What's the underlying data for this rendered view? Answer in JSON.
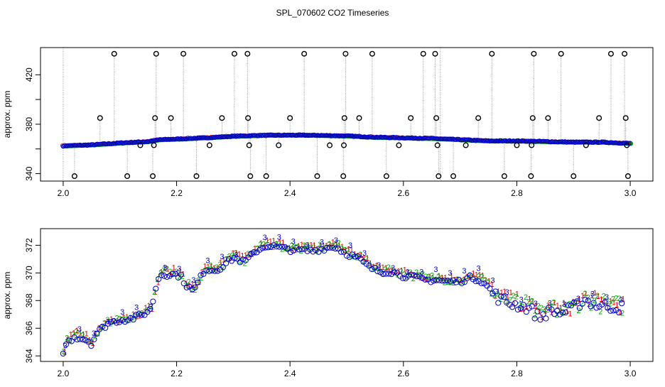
{
  "title": "SPL_070602  CO2 Timeseries",
  "chart_data": [
    {
      "type": "scatter",
      "name": "top",
      "ylabel": "approx. ppm",
      "xlim": [
        1.96,
        3.04
      ],
      "ylim": [
        334,
        442
      ],
      "xticks": [
        2.0,
        2.2,
        2.4,
        2.6,
        2.8,
        3.0
      ],
      "xtick_labels": [
        "2.0",
        "2.2",
        "2.4",
        "2.6",
        "2.8",
        "3.0"
      ],
      "yticks": [
        340,
        360,
        380,
        400,
        420
      ],
      "ytick_labels": [
        "340",
        "",
        "380",
        "",
        "420"
      ],
      "vlines_x": [
        2.0,
        2.665
      ],
      "baseline": [
        [
          2.0,
          362.5
        ],
        [
          2.05,
          363.3
        ],
        [
          2.1,
          364.8
        ],
        [
          2.15,
          366.0
        ],
        [
          2.17,
          367.5
        ],
        [
          2.2,
          368.0
        ],
        [
          2.25,
          369.0
        ],
        [
          2.3,
          370.3
        ],
        [
          2.35,
          371.0
        ],
        [
          2.4,
          371.2
        ],
        [
          2.45,
          371.0
        ],
        [
          2.5,
          370.5
        ],
        [
          2.55,
          369.5
        ],
        [
          2.6,
          369.0
        ],
        [
          2.65,
          368.5
        ],
        [
          2.7,
          367.5
        ],
        [
          2.75,
          366.5
        ],
        [
          2.8,
          366.5
        ],
        [
          2.85,
          366.0
        ],
        [
          2.9,
          365.5
        ],
        [
          2.95,
          365.5
        ],
        [
          3.0,
          364.5
        ]
      ],
      "spikes": [
        {
          "x": 2.02,
          "y": 338
        },
        {
          "x": 2.065,
          "y": 385
        },
        {
          "x": 2.09,
          "y": 437
        },
        {
          "x": 2.113,
          "y": 338
        },
        {
          "x": 2.136,
          "y": 363
        },
        {
          "x": 2.158,
          "y": 338
        },
        {
          "x": 2.16,
          "y": 363
        },
        {
          "x": 2.162,
          "y": 385
        },
        {
          "x": 2.164,
          "y": 437
        },
        {
          "x": 2.19,
          "y": 385
        },
        {
          "x": 2.212,
          "y": 437
        },
        {
          "x": 2.235,
          "y": 338
        },
        {
          "x": 2.258,
          "y": 363
        },
        {
          "x": 2.28,
          "y": 385
        },
        {
          "x": 2.302,
          "y": 437
        },
        {
          "x": 2.325,
          "y": 437
        },
        {
          "x": 2.326,
          "y": 385
        },
        {
          "x": 2.328,
          "y": 363
        },
        {
          "x": 2.33,
          "y": 338
        },
        {
          "x": 2.358,
          "y": 338
        },
        {
          "x": 2.38,
          "y": 363
        },
        {
          "x": 2.4,
          "y": 385
        },
        {
          "x": 2.425,
          "y": 437
        },
        {
          "x": 2.448,
          "y": 338
        },
        {
          "x": 2.47,
          "y": 363
        },
        {
          "x": 2.494,
          "y": 338
        },
        {
          "x": 2.495,
          "y": 363
        },
        {
          "x": 2.496,
          "y": 385
        },
        {
          "x": 2.498,
          "y": 437
        },
        {
          "x": 2.522,
          "y": 385
        },
        {
          "x": 2.545,
          "y": 437
        },
        {
          "x": 2.57,
          "y": 338
        },
        {
          "x": 2.592,
          "y": 363
        },
        {
          "x": 2.613,
          "y": 385
        },
        {
          "x": 2.635,
          "y": 437
        },
        {
          "x": 2.656,
          "y": 437
        },
        {
          "x": 2.658,
          "y": 385
        },
        {
          "x": 2.66,
          "y": 363
        },
        {
          "x": 2.662,
          "y": 338
        },
        {
          "x": 2.688,
          "y": 338
        },
        {
          "x": 2.71,
          "y": 363
        },
        {
          "x": 2.732,
          "y": 385
        },
        {
          "x": 2.756,
          "y": 437
        },
        {
          "x": 2.778,
          "y": 338
        },
        {
          "x": 2.8,
          "y": 363
        },
        {
          "x": 2.825,
          "y": 338
        },
        {
          "x": 2.826,
          "y": 363
        },
        {
          "x": 2.828,
          "y": 385
        },
        {
          "x": 2.83,
          "y": 437
        },
        {
          "x": 2.855,
          "y": 385
        },
        {
          "x": 2.878,
          "y": 437
        },
        {
          "x": 2.9,
          "y": 338
        },
        {
          "x": 2.922,
          "y": 363
        },
        {
          "x": 2.945,
          "y": 385
        },
        {
          "x": 2.966,
          "y": 437
        },
        {
          "x": 2.99,
          "y": 437
        },
        {
          "x": 2.992,
          "y": 385
        },
        {
          "x": 2.994,
          "y": 363
        },
        {
          "x": 2.996,
          "y": 338
        }
      ]
    },
    {
      "type": "scatter",
      "name": "bottom",
      "ylabel": "approx. ppm",
      "xlim": [
        1.96,
        3.04
      ],
      "ylim": [
        363.6,
        373.2
      ],
      "xticks": [
        2.0,
        2.2,
        2.4,
        2.6,
        2.8,
        3.0
      ],
      "xtick_labels": [
        "2.0",
        "2.2",
        "2.4",
        "2.6",
        "2.8",
        "3.0"
      ],
      "yticks": [
        364,
        366,
        368,
        370,
        372
      ],
      "ytick_labels": [
        "364",
        "366",
        "368",
        "370",
        "372"
      ],
      "series_labels": [
        "1",
        "2",
        "3"
      ],
      "series_colors": [
        "#dd0000",
        "#00aa00",
        "#0000cc"
      ],
      "profile": [
        [
          2.0,
          364.2
        ],
        [
          2.005,
          365.0
        ],
        [
          2.02,
          365.5
        ],
        [
          2.03,
          365.4
        ],
        [
          2.04,
          365.3
        ],
        [
          2.05,
          365.0
        ],
        [
          2.06,
          365.8
        ],
        [
          2.08,
          366.5
        ],
        [
          2.1,
          366.7
        ],
        [
          2.12,
          366.8
        ],
        [
          2.14,
          367.1
        ],
        [
          2.155,
          367.5
        ],
        [
          2.162,
          368.8
        ],
        [
          2.17,
          370.0
        ],
        [
          2.2,
          370.0
        ],
        [
          2.21,
          369.8
        ],
        [
          2.215,
          369.3
        ],
        [
          2.23,
          368.8
        ],
        [
          2.25,
          370.4
        ],
        [
          2.27,
          370.3
        ],
        [
          2.3,
          371.2
        ],
        [
          2.32,
          370.9
        ],
        [
          2.34,
          371.7
        ],
        [
          2.36,
          372.1
        ],
        [
          2.4,
          371.8
        ],
        [
          2.44,
          371.7
        ],
        [
          2.46,
          371.9
        ],
        [
          2.48,
          372.0
        ],
        [
          2.5,
          371.5
        ],
        [
          2.52,
          371.2
        ],
        [
          2.54,
          370.5
        ],
        [
          2.56,
          370.2
        ],
        [
          2.58,
          370.2
        ],
        [
          2.6,
          369.9
        ],
        [
          2.62,
          369.8
        ],
        [
          2.64,
          369.6
        ],
        [
          2.66,
          369.6
        ],
        [
          2.68,
          369.5
        ],
        [
          2.7,
          369.5
        ],
        [
          2.72,
          369.8
        ],
        [
          2.74,
          369.5
        ],
        [
          2.75,
          369.0
        ],
        [
          2.77,
          368.2
        ],
        [
          2.79,
          367.9
        ],
        [
          2.8,
          367.8
        ],
        [
          2.82,
          367.6
        ],
        [
          2.84,
          366.9
        ],
        [
          2.86,
          367.4
        ],
        [
          2.88,
          367.2
        ],
        [
          2.9,
          367.6
        ],
        [
          2.92,
          368.2
        ],
        [
          2.94,
          367.8
        ],
        [
          2.96,
          367.7
        ],
        [
          2.98,
          367.6
        ],
        [
          2.985,
          367.6
        ]
      ]
    }
  ]
}
